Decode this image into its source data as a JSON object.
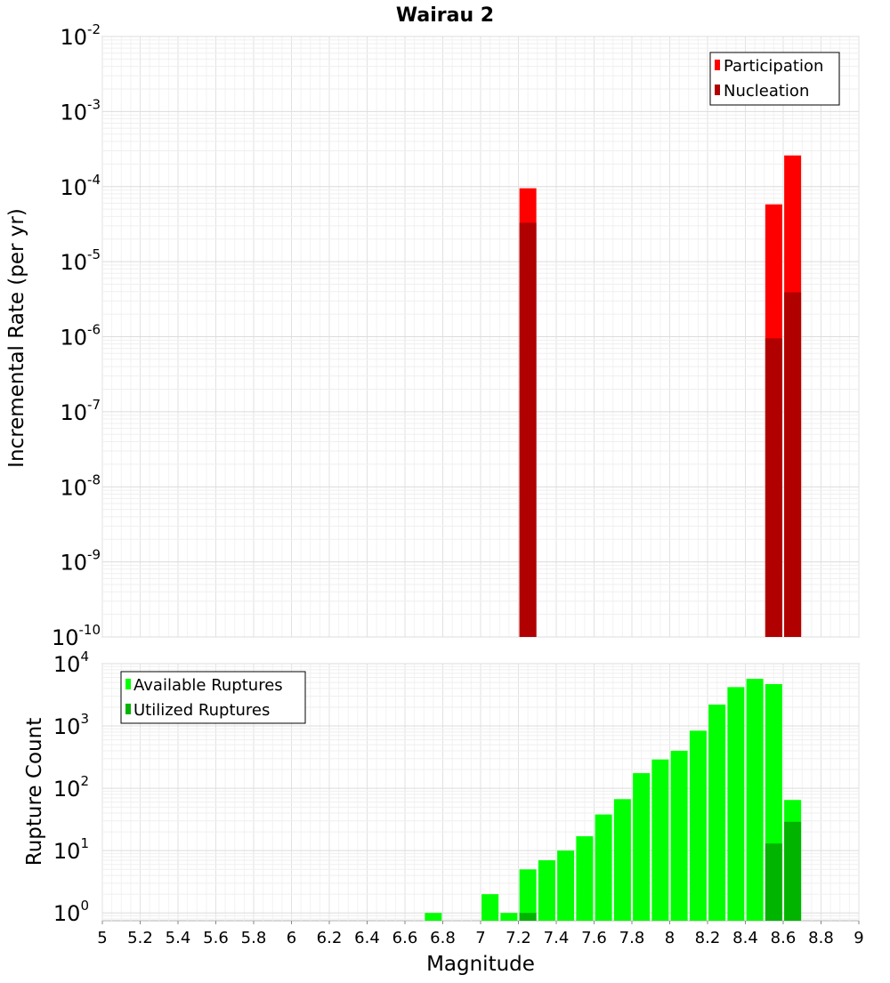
{
  "chart_data": [
    {
      "type": "bar",
      "title": "Wairau 2",
      "xlabel": "",
      "ylabel": "Incremental Rate (per yr)",
      "yscale": "log",
      "xlim": [
        5,
        9
      ],
      "ylim": [
        1e-10,
        0.01
      ],
      "ytick_exponents": [
        "-2",
        "-3",
        "-4",
        "-5",
        "-6",
        "-7",
        "-8",
        "-9",
        "-10"
      ],
      "ytick_base": "10",
      "grid": true,
      "legend_position": "top-right",
      "colors": {
        "participation": "#ff0000",
        "nucleation": "#b00000"
      },
      "series": [
        {
          "name": "Participation",
          "x": [
            7.25,
            8.55,
            8.65
          ],
          "values": [
            9.5e-05,
            5.8e-05,
            0.00026
          ]
        },
        {
          "name": "Nucleation",
          "x": [
            7.25,
            8.55,
            8.65
          ],
          "values": [
            3.3e-05,
            9.5e-07,
            3.9e-06
          ]
        }
      ]
    },
    {
      "type": "bar",
      "xlabel": "Magnitude",
      "ylabel": "Rupture Count",
      "yscale": "log",
      "xlim": [
        5,
        9
      ],
      "ylim": [
        0.75,
        10000
      ],
      "xticks": [
        "5",
        "5.2",
        "5.4",
        "5.6",
        "5.8",
        "6",
        "6.2",
        "6.4",
        "6.6",
        "6.8",
        "7",
        "7.2",
        "7.4",
        "7.6",
        "7.8",
        "8",
        "8.2",
        "8.4",
        "8.6",
        "8.8",
        "9"
      ],
      "ytick_exponents": [
        "4",
        "3",
        "2",
        "1",
        "0"
      ],
      "ytick_base": "10",
      "grid": true,
      "legend_position": "top-left",
      "colors": {
        "available": "#00ff00",
        "utilized": "#00b400"
      },
      "series": [
        {
          "name": "Available Ruptures",
          "x": [
            6.75,
            7.05,
            7.15,
            7.25,
            7.35,
            7.45,
            7.55,
            7.65,
            7.75,
            7.85,
            7.95,
            8.05,
            8.15,
            8.25,
            8.35,
            8.45,
            8.55,
            8.65
          ],
          "values": [
            1,
            2,
            1,
            5,
            7,
            10,
            17,
            38,
            67,
            175,
            290,
            400,
            840,
            2200,
            4200,
            5700,
            4700,
            65
          ]
        },
        {
          "name": "Utilized Ruptures",
          "x": [
            7.25,
            8.55,
            8.65
          ],
          "values": [
            1,
            13,
            29
          ]
        }
      ]
    }
  ]
}
